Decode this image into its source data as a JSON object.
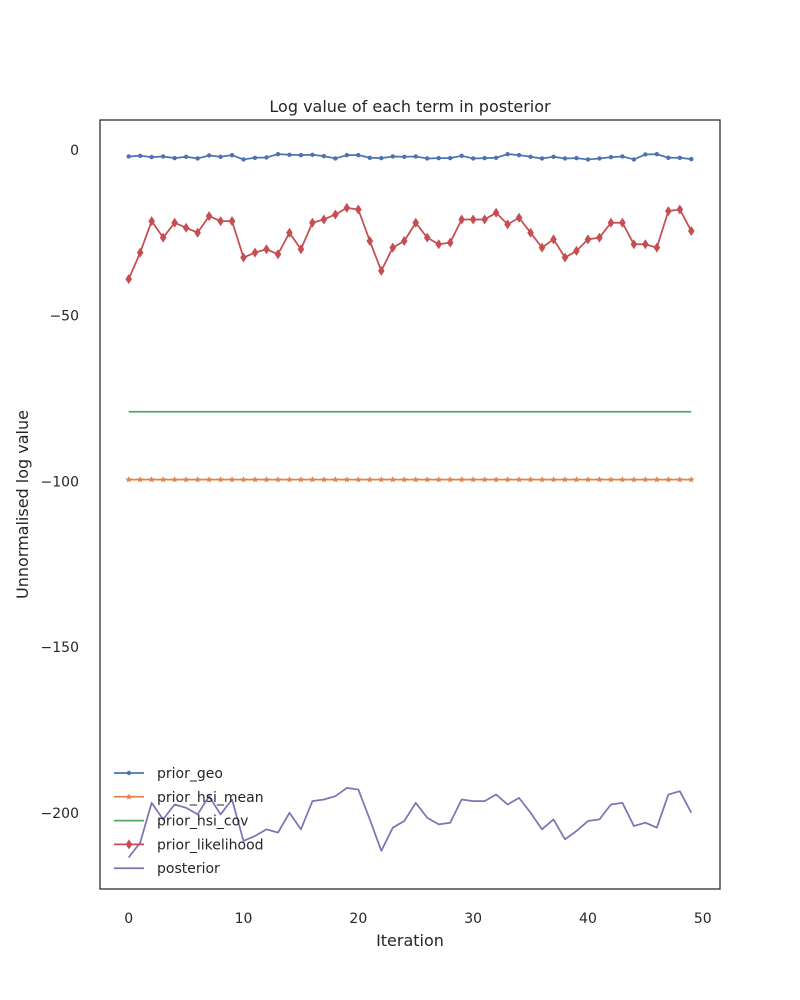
{
  "chart_data": {
    "type": "line",
    "title": "Log value of each term in posterior",
    "xlabel": "Iteration",
    "ylabel": "Unnormalised log value",
    "xlim": [
      -2.5,
      51.5
    ],
    "ylim": [
      -223,
      9
    ],
    "xticks": [
      0,
      10,
      20,
      30,
      40,
      50
    ],
    "yticks": [
      0,
      -50,
      -100,
      -150,
      -200
    ],
    "grid": false,
    "legend_position": "lower-left",
    "x": [
      0,
      1,
      2,
      3,
      4,
      5,
      6,
      7,
      8,
      9,
      10,
      11,
      12,
      13,
      14,
      15,
      16,
      17,
      18,
      19,
      20,
      21,
      22,
      23,
      24,
      25,
      26,
      27,
      28,
      29,
      30,
      31,
      32,
      33,
      34,
      35,
      36,
      37,
      38,
      39,
      40,
      41,
      42,
      43,
      44,
      45,
      46,
      47,
      48,
      49
    ],
    "series": [
      {
        "name": "prior_geo",
        "color": "#4c72b0",
        "marker": "dot",
        "values": [
          -2,
          -1.8,
          -2.2,
          -2,
          -2.5,
          -2.1,
          -2.6,
          -1.7,
          -2.1,
          -1.6,
          -2.9,
          -2.4,
          -2.3,
          -1.3,
          -1.5,
          -1.6,
          -1.5,
          -1.9,
          -2.6,
          -1.6,
          -1.6,
          -2.4,
          -2.5,
          -2,
          -2.1,
          -2,
          -2.6,
          -2.5,
          -2.5,
          -1.8,
          -2.6,
          -2.5,
          -2.4,
          -1.3,
          -1.6,
          -2.1,
          -2.6,
          -2.1,
          -2.6,
          -2.5,
          -2.9,
          -2.6,
          -2.2,
          -2,
          -2.9,
          -1.4,
          -1.3,
          -2.4,
          -2.4,
          -2.8
        ]
      },
      {
        "name": "prior_hsi_mean",
        "color": "#dd8452",
        "marker": "star",
        "values": [
          -99.5,
          -99.5,
          -99.5,
          -99.5,
          -99.5,
          -99.5,
          -99.5,
          -99.5,
          -99.5,
          -99.5,
          -99.5,
          -99.5,
          -99.5,
          -99.5,
          -99.5,
          -99.5,
          -99.5,
          -99.5,
          -99.5,
          -99.5,
          -99.5,
          -99.5,
          -99.5,
          -99.5,
          -99.5,
          -99.5,
          -99.5,
          -99.5,
          -99.5,
          -99.5,
          -99.5,
          -99.5,
          -99.5,
          -99.5,
          -99.5,
          -99.5,
          -99.5,
          -99.5,
          -99.5,
          -99.5,
          -99.5,
          -99.5,
          -99.5,
          -99.5,
          -99.5,
          -99.5,
          -99.5,
          -99.5,
          -99.5,
          -99.5
        ]
      },
      {
        "name": "prior_hsi_cov",
        "color": "#55a868",
        "marker": "none",
        "values": [
          -79,
          -79,
          -79,
          -79,
          -79,
          -79,
          -79,
          -79,
          -79,
          -79,
          -79,
          -79,
          -79,
          -79,
          -79,
          -79,
          -79,
          -79,
          -79,
          -79,
          -79,
          -79,
          -79,
          -79,
          -79,
          -79,
          -79,
          -79,
          -79,
          -79,
          -79,
          -79,
          -79,
          -79,
          -79,
          -79,
          -79,
          -79,
          -79,
          -79,
          -79,
          -79,
          -79,
          -79,
          -79,
          -79,
          -79,
          -79,
          -79,
          -79
        ]
      },
      {
        "name": "prior_likelihood",
        "color": "#c44e52",
        "marker": "diamond",
        "values": [
          -39,
          -31,
          -21.5,
          -26.5,
          -22,
          -23.5,
          -25,
          -20,
          -21.5,
          -21.5,
          -32.5,
          -31,
          -30,
          -31.5,
          -25,
          -30,
          -22,
          -21,
          -19.5,
          -17.5,
          -18,
          -27.5,
          -36.5,
          -29.5,
          -27.5,
          -22,
          -26.5,
          -28.5,
          -28,
          -21,
          -21,
          -21,
          -19,
          -22.5,
          -20.5,
          -25,
          -29.5,
          -27,
          -32.5,
          -30.5,
          -27,
          -26.5,
          -22,
          -22,
          -28.5,
          -28.5,
          -29.5,
          -18.5,
          -18,
          -24.5
        ]
      },
      {
        "name": "posterior",
        "color": "#8172b3",
        "marker": "none",
        "values": [
          -213.5,
          -209,
          -197,
          -202,
          -197.5,
          -198.5,
          -200.5,
          -195,
          -200.5,
          -196,
          -208.5,
          -207,
          -205,
          -206,
          -200,
          -205,
          -196.5,
          -196,
          -195,
          -192.5,
          -193,
          -202,
          -211.5,
          -204.5,
          -202.5,
          -197,
          -201.5,
          -203.5,
          -203,
          -196,
          -196.5,
          -196.5,
          -194.5,
          -197.5,
          -195.5,
          -200,
          -205,
          -202,
          -208,
          -205.5,
          -202.5,
          -202,
          -197.5,
          -197,
          -204,
          -203,
          -204.5,
          -194.5,
          -193.5,
          -200
        ]
      }
    ]
  }
}
